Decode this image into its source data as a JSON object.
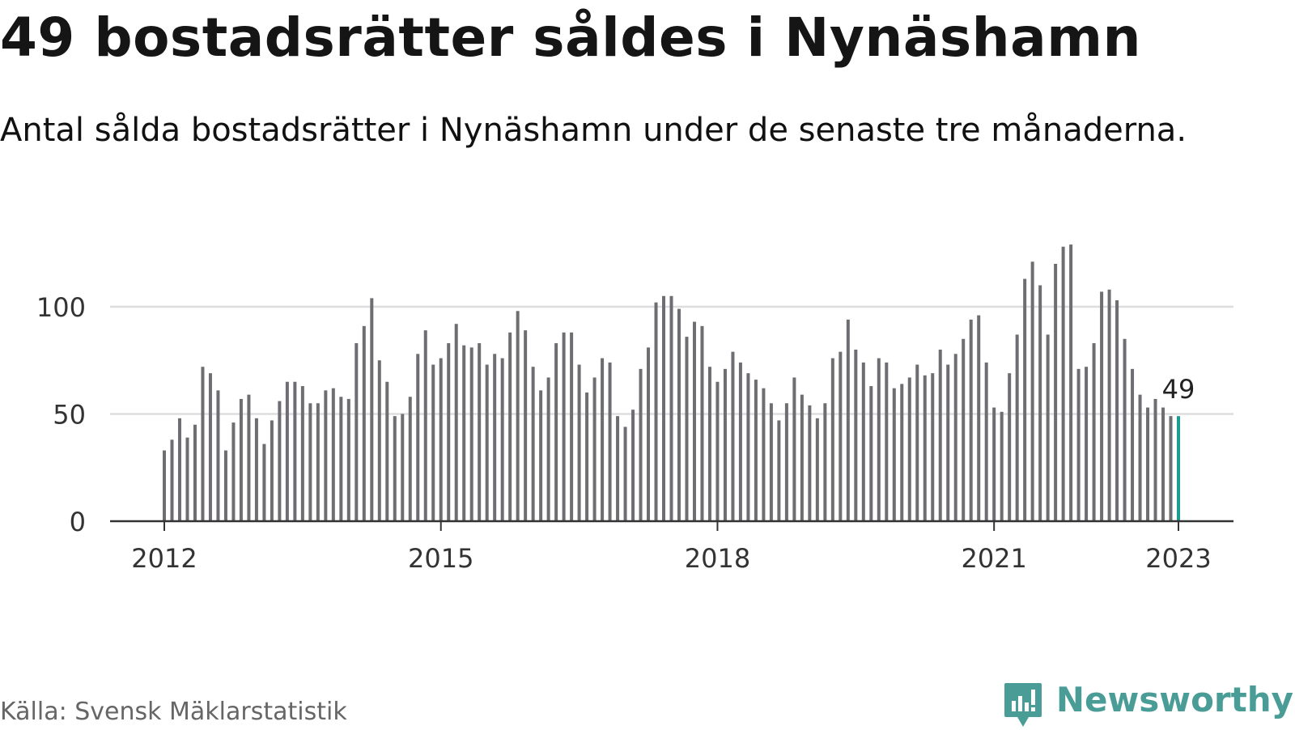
{
  "title": "49 bostadsrätter såldes i Nynäshamn",
  "subtitle": "Antal sålda bostadsrätter i Nynäshamn under de senaste tre månaderna.",
  "source": "Källa: Svensk Mäklarstatistik",
  "brand": {
    "name": "Newsworthy",
    "icon": "newsworthy-logo-icon",
    "color": "#4a9c96"
  },
  "chart_data": {
    "type": "bar",
    "start": "2012-01",
    "x_ticks": [
      "2012",
      "2015",
      "2018",
      "2021",
      "2023"
    ],
    "y_ticks": [
      0,
      50,
      100
    ],
    "ylim": [
      0,
      130
    ],
    "grid": true,
    "bar_color": "#6d6d72",
    "highlight_color": "#1a9c94",
    "highlight_label": "49",
    "values": [
      33,
      38,
      48,
      39,
      45,
      72,
      69,
      61,
      33,
      46,
      57,
      59,
      48,
      36,
      47,
      56,
      65,
      65,
      63,
      55,
      55,
      61,
      62,
      58,
      57,
      83,
      91,
      104,
      75,
      65,
      49,
      50,
      58,
      78,
      89,
      73,
      76,
      83,
      92,
      82,
      81,
      83,
      73,
      78,
      76,
      88,
      98,
      89,
      72,
      61,
      67,
      83,
      88,
      88,
      73,
      60,
      67,
      76,
      74,
      49,
      44,
      52,
      71,
      81,
      102,
      105,
      105,
      99,
      86,
      93,
      91,
      72,
      65,
      71,
      79,
      74,
      69,
      66,
      62,
      55,
      47,
      55,
      67,
      59,
      54,
      48,
      55,
      76,
      79,
      94,
      80,
      74,
      63,
      76,
      74,
      62,
      64,
      67,
      73,
      68,
      69,
      80,
      73,
      78,
      85,
      94,
      96,
      74,
      53,
      51,
      69,
      87,
      113,
      121,
      110,
      87,
      120,
      128,
      129,
      71,
      72,
      83,
      107,
      108,
      103,
      85,
      71,
      59,
      53,
      57,
      53,
      49,
      49
    ]
  }
}
